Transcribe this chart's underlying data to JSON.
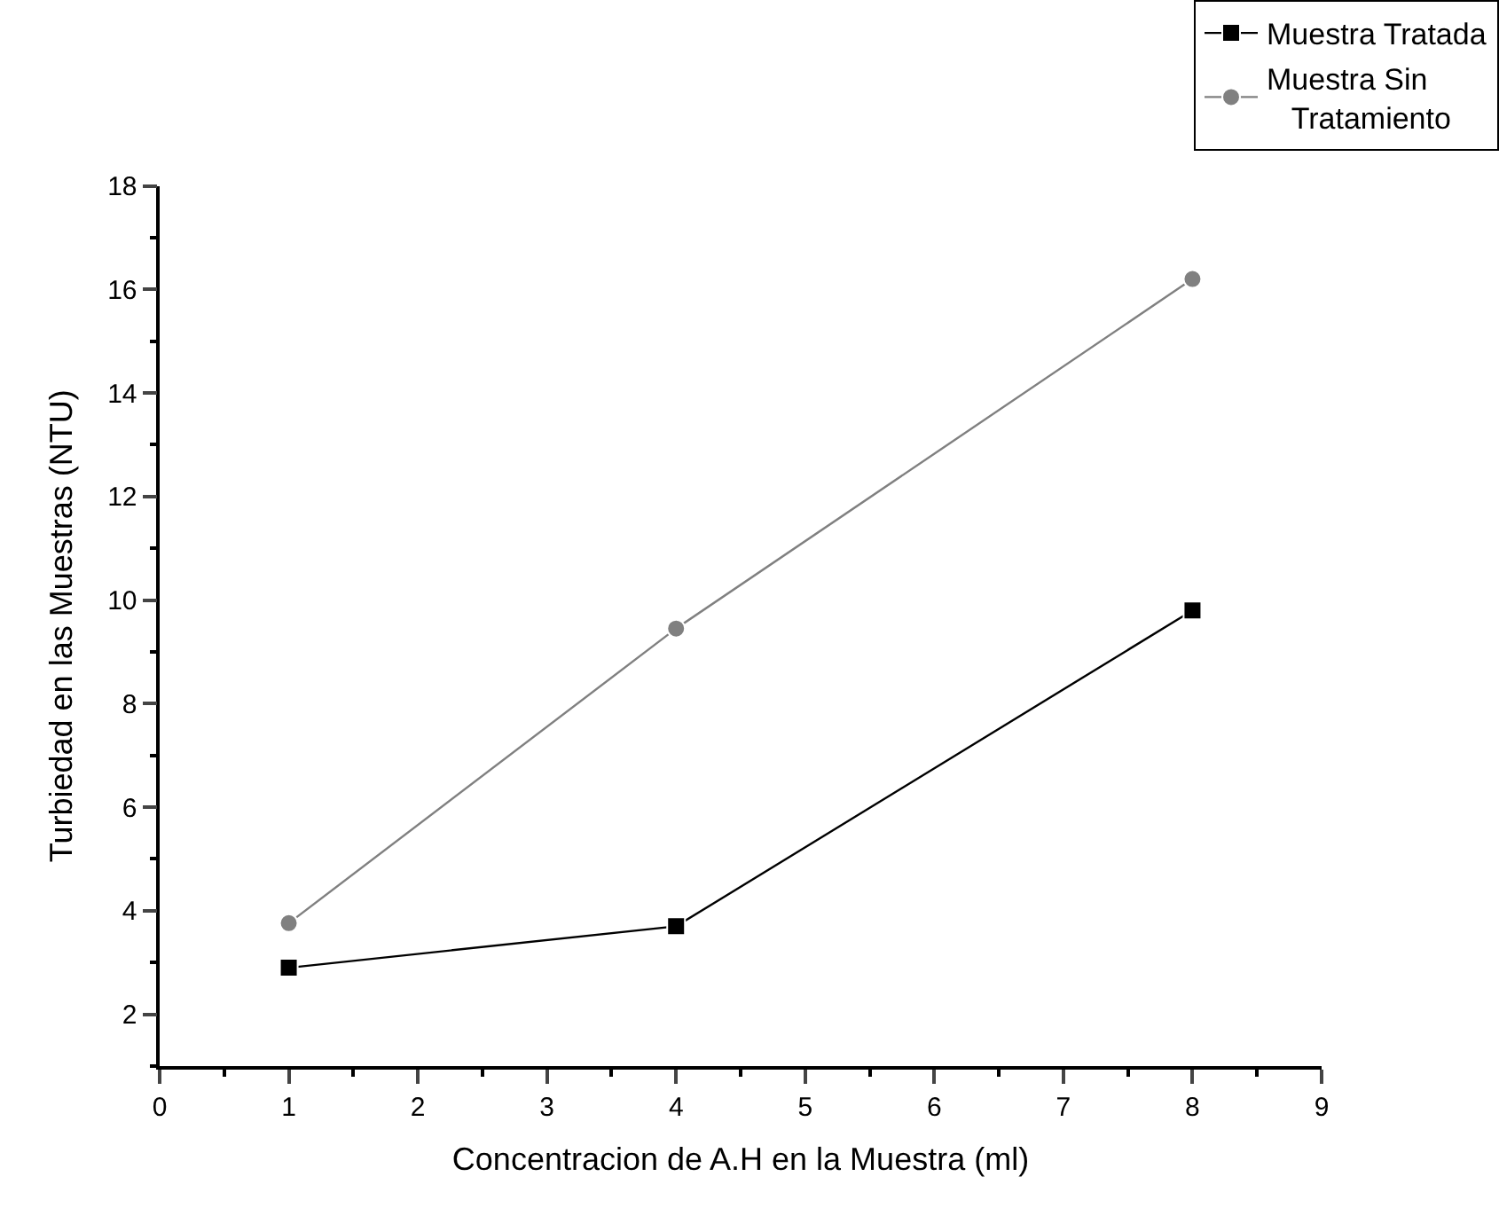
{
  "chart_data": {
    "type": "line",
    "xlabel": "Concentracion de A.H en la Muestra (ml)",
    "ylabel": "Turbiedad en las Muestras (NTU)",
    "x": [
      1,
      4,
      8
    ],
    "series": [
      {
        "name": "Muestra Tratada",
        "color": "#000000",
        "marker": "square",
        "values": [
          2.9,
          3.7,
          9.8
        ]
      },
      {
        "name": "Muestra Sin Tratamiento",
        "color": "#808080",
        "marker": "circle",
        "values": [
          3.76,
          9.45,
          16.2
        ]
      }
    ],
    "xlim": [
      0,
      9
    ],
    "xticks": [
      0,
      1,
      2,
      3,
      4,
      5,
      6,
      7,
      8,
      9
    ],
    "ylim": [
      1,
      18
    ],
    "yticks": [
      2,
      4,
      6,
      8,
      10,
      12,
      14,
      16,
      18
    ],
    "legend": "top right",
    "line_style": "solid"
  }
}
